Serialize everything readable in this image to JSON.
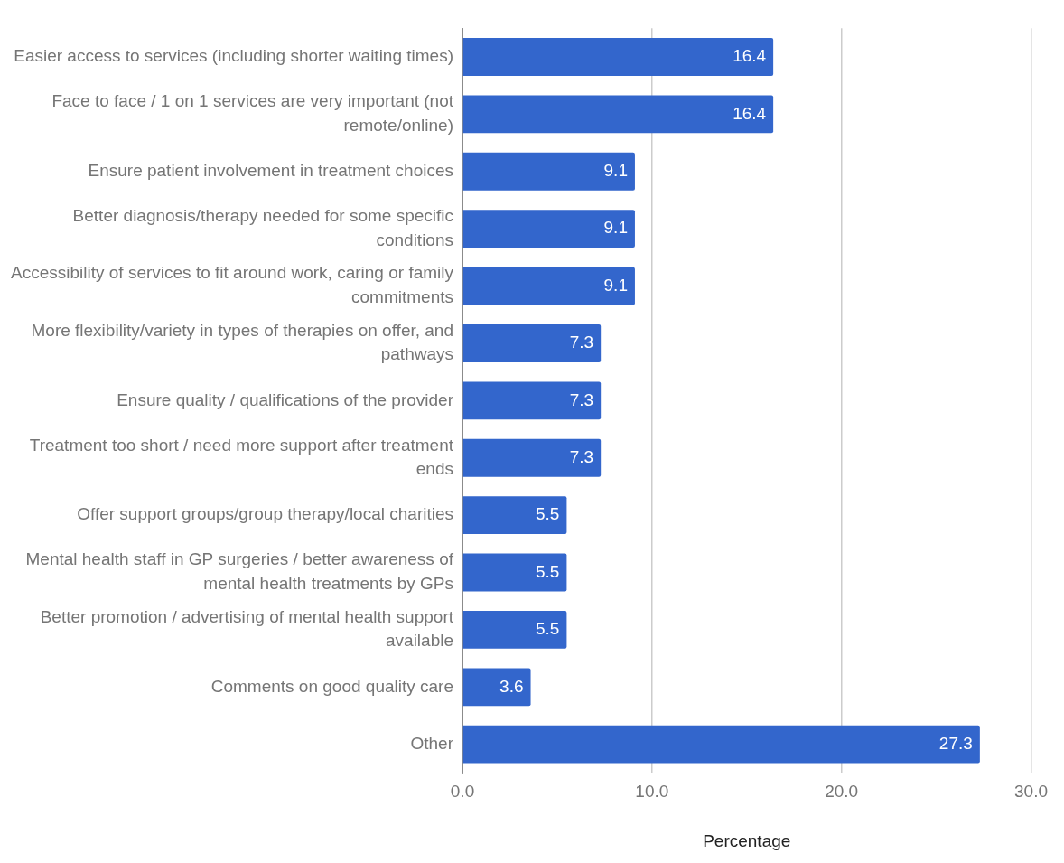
{
  "chart_data": {
    "type": "bar",
    "orientation": "horizontal",
    "xlabel": "Percentage",
    "categories": [
      "Easier access to services (including shorter waiting times)",
      "Face to face / 1 on 1 services are very important (not remote/online)",
      "Ensure patient involvement in treatment choices",
      "Better diagnosis/therapy needed for some specific conditions",
      "Accessibility of services to fit around work, caring or family commitments",
      "More flexibility/variety in types of therapies on offer, and pathways",
      "Ensure quality / qualifications of the provider",
      "Treatment too short / need more support after treatment ends",
      "Offer support groups/group therapy/local charities",
      "Mental health staff in GP surgeries / better awareness of mental health treatments by GPs",
      "Better promotion / advertising of mental health support available",
      "Comments on good quality care",
      "Other"
    ],
    "values": [
      16.4,
      16.4,
      9.1,
      9.1,
      9.1,
      7.3,
      7.3,
      7.3,
      5.5,
      5.5,
      5.5,
      3.6,
      27.3
    ],
    "color": "#3366cc",
    "xlim": [
      0,
      30
    ],
    "xticks": [
      {
        "value": 0,
        "label": "0.0"
      },
      {
        "value": 10,
        "label": "10.0"
      },
      {
        "value": 20,
        "label": "20.0"
      },
      {
        "value": 30,
        "label": "30.0"
      }
    ],
    "grid": "x",
    "data_labels": true
  }
}
